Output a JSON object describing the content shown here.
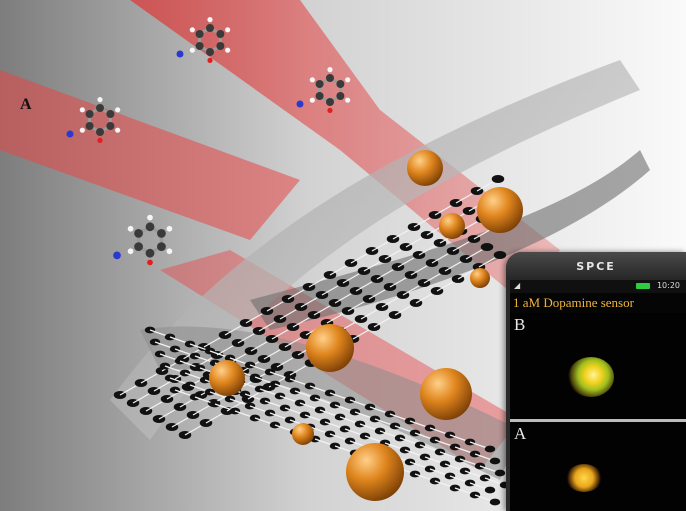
{
  "figure": {
    "scene_label": "A"
  },
  "phone": {
    "brand": "SPCE",
    "status_time": "10:20",
    "screen_title": "1 aM Dopamine sensor",
    "panel_top_label": "B",
    "panel_bottom_label": "A"
  },
  "colors": {
    "sheet_atom": "#111111",
    "bond": "#f2f2f2",
    "nanoparticle": "#d9801c",
    "beam": "#e62828",
    "screen_text": "#f0b43c",
    "battery": "#2ecc40"
  }
}
